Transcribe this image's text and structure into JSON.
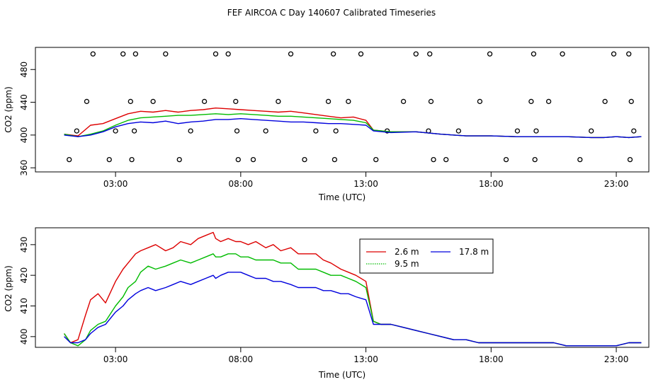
{
  "title": "FEF AIRCOA C  Day 140607  Calibrated Timeseries",
  "legend": {
    "items": [
      {
        "label": "2.6 m",
        "color": "#dd0000"
      },
      {
        "label": "9.5 m",
        "color": "#00bb00"
      },
      {
        "label": "17.8 m",
        "color": "#0000dd"
      }
    ]
  },
  "chart_data": [
    {
      "type": "line",
      "panel": "top",
      "xlabel": "Time (UTC)",
      "ylabel": "CO2 (ppm)",
      "xlim": [
        -0.2,
        24.3
      ],
      "ylim": [
        355,
        507
      ],
      "xticks": [
        3,
        8,
        13,
        18,
        23
      ],
      "xtick_labels": [
        "03:00",
        "08:00",
        "13:00",
        "18:00",
        "23:00"
      ],
      "yticks": [
        360,
        400,
        440,
        480
      ],
      "ytick_labels": [
        "360",
        "400",
        "440",
        "480"
      ],
      "x": [
        0.95,
        1.5,
        2.0,
        2.5,
        3.0,
        3.5,
        4.0,
        4.5,
        5.0,
        5.5,
        6.0,
        6.5,
        7.0,
        7.5,
        8.0,
        8.5,
        9.0,
        9.5,
        10.0,
        10.5,
        11.0,
        11.5,
        12.0,
        12.5,
        13.0,
        13.3,
        14.0,
        15.0,
        16.0,
        17.0,
        18.0,
        19.0,
        20.0,
        21.0,
        22.0,
        22.5,
        23.0,
        23.5,
        24.0
      ],
      "series": [
        {
          "name": "2.6 m",
          "color": "#dd0000",
          "values": [
            401,
            399,
            412,
            414,
            420,
            426,
            429,
            428,
            430,
            428,
            430,
            431,
            433,
            432,
            431,
            430,
            429,
            428,
            429,
            427,
            425,
            423,
            421,
            422,
            418,
            406,
            404,
            404,
            401,
            399,
            399,
            398,
            398,
            398,
            397,
            397,
            398,
            397,
            398
          ]
        },
        {
          "name": "9.5 m",
          "color": "#00bb00",
          "values": [
            401,
            398,
            401,
            405,
            412,
            418,
            421,
            422,
            423,
            424,
            424,
            425,
            426,
            425,
            426,
            425,
            424,
            423,
            423,
            422,
            421,
            420,
            419,
            418,
            415,
            406,
            404,
            404,
            401,
            399,
            399,
            398,
            398,
            398,
            397,
            397,
            398,
            397,
            398
          ]
        },
        {
          "name": "17.8 m",
          "color": "#0000dd",
          "values": [
            400,
            398,
            400,
            404,
            410,
            414,
            416,
            415,
            417,
            414,
            416,
            417,
            419,
            419,
            420,
            419,
            418,
            417,
            416,
            416,
            415,
            414,
            414,
            413,
            412,
            405,
            403,
            404,
            401,
            399,
            399,
            398,
            398,
            398,
            397,
            397,
            398,
            397,
            398
          ]
        }
      ],
      "flags": {
        "x": [
          1.15,
          1.45,
          1.85,
          2.1,
          2.75,
          3.0,
          3.3,
          3.6,
          3.65,
          3.75,
          3.8,
          4.5,
          5.0,
          5.55,
          6.0,
          6.55,
          7.0,
          7.5,
          7.8,
          7.85,
          7.9,
          8.5,
          9.0,
          9.5,
          10.0,
          10.55,
          11.0,
          11.5,
          11.7,
          11.75,
          11.8,
          12.3,
          12.8,
          13.4,
          13.85,
          14.5,
          15.0,
          15.5,
          15.55,
          15.6,
          15.7,
          16.2,
          16.7,
          17.55,
          17.95,
          18.6,
          19.05,
          19.6,
          19.7,
          19.75,
          19.8,
          20.3,
          20.85,
          21.55,
          22.0,
          22.55,
          22.9,
          23.5,
          23.55,
          23.6,
          23.7
        ],
        "y": [
          370,
          405,
          441,
          499,
          370,
          405,
          499,
          441,
          370,
          405,
          499,
          441,
          499,
          370,
          405,
          441,
          499,
          499,
          441,
          405,
          370,
          370,
          405,
          441,
          499,
          370,
          405,
          441,
          499,
          370,
          405,
          441,
          499,
          370,
          405,
          441,
          499,
          405,
          499,
          441,
          370,
          370,
          405,
          441,
          499,
          370,
          405,
          441,
          499,
          370,
          405,
          441,
          499,
          370,
          405,
          441,
          499,
          499,
          370,
          441,
          405
        ]
      }
    },
    {
      "type": "line",
      "panel": "bottom",
      "xlabel": "Time (UTC)",
      "ylabel": "CO2 (ppm)",
      "xlim": [
        -0.2,
        24.3
      ],
      "ylim": [
        396.5,
        435.5
      ],
      "xticks": [
        3,
        8,
        13,
        18,
        23
      ],
      "xtick_labels": [
        "03:00",
        "08:00",
        "13:00",
        "18:00",
        "23:00"
      ],
      "yticks": [
        400,
        410,
        420,
        430
      ],
      "ytick_labels": [
        "400",
        "410",
        "420",
        "430"
      ],
      "x": [
        0.95,
        1.2,
        1.5,
        1.8,
        2.0,
        2.3,
        2.6,
        3.0,
        3.3,
        3.5,
        3.8,
        4.0,
        4.3,
        4.6,
        5.0,
        5.3,
        5.6,
        6.0,
        6.3,
        6.6,
        6.9,
        7.0,
        7.2,
        7.5,
        7.8,
        8.0,
        8.3,
        8.6,
        9.0,
        9.3,
        9.6,
        10.0,
        10.3,
        10.6,
        11.0,
        11.3,
        11.6,
        12.0,
        12.3,
        12.6,
        13.0,
        13.3,
        13.6,
        14.0,
        14.5,
        15.0,
        15.5,
        16.0,
        16.5,
        17.0,
        17.5,
        18.0,
        18.5,
        19.0,
        19.5,
        20.0,
        20.5,
        21.0,
        21.5,
        22.0,
        22.5,
        23.0,
        23.5,
        24.0
      ],
      "series": [
        {
          "name": "2.6 m",
          "color": "#dd0000",
          "values": [
            401,
            398,
            399,
            407,
            412,
            414,
            411,
            418,
            422,
            424,
            427,
            428,
            429,
            430,
            428,
            429,
            431,
            430,
            432,
            433,
            434,
            432,
            431,
            432,
            431,
            431,
            430,
            431,
            429,
            430,
            428,
            429,
            427,
            427,
            427,
            425,
            424,
            422,
            421,
            420,
            418,
            405,
            404,
            404,
            403,
            402,
            401,
            400,
            399,
            399,
            398,
            398,
            398,
            398,
            398,
            398,
            398,
            397,
            397,
            397,
            397,
            397,
            398,
            398
          ]
        },
        {
          "name": "9.5 m",
          "color": "#00bb00",
          "values": [
            401,
            398,
            397,
            399,
            402,
            404,
            405,
            410,
            413,
            416,
            418,
            421,
            423,
            422,
            423,
            424,
            425,
            424,
            425,
            426,
            427,
            426,
            426,
            427,
            427,
            426,
            426,
            425,
            425,
            425,
            424,
            424,
            422,
            422,
            422,
            421,
            420,
            420,
            419,
            418,
            416,
            405,
            404,
            404,
            403,
            402,
            401,
            400,
            399,
            399,
            398,
            398,
            398,
            398,
            398,
            398,
            398,
            397,
            397,
            397,
            397,
            397,
            398,
            398
          ]
        },
        {
          "name": "17.8 m",
          "color": "#0000dd",
          "values": [
            400,
            398,
            398,
            399,
            401,
            403,
            404,
            408,
            410,
            412,
            414,
            415,
            416,
            415,
            416,
            417,
            418,
            417,
            418,
            419,
            420,
            419,
            420,
            421,
            421,
            421,
            420,
            419,
            419,
            418,
            418,
            417,
            416,
            416,
            416,
            415,
            415,
            414,
            414,
            413,
            412,
            404,
            404,
            404,
            403,
            402,
            401,
            400,
            399,
            399,
            398,
            398,
            398,
            398,
            398,
            398,
            398,
            397,
            397,
            397,
            397,
            397,
            398,
            398
          ]
        }
      ]
    }
  ]
}
